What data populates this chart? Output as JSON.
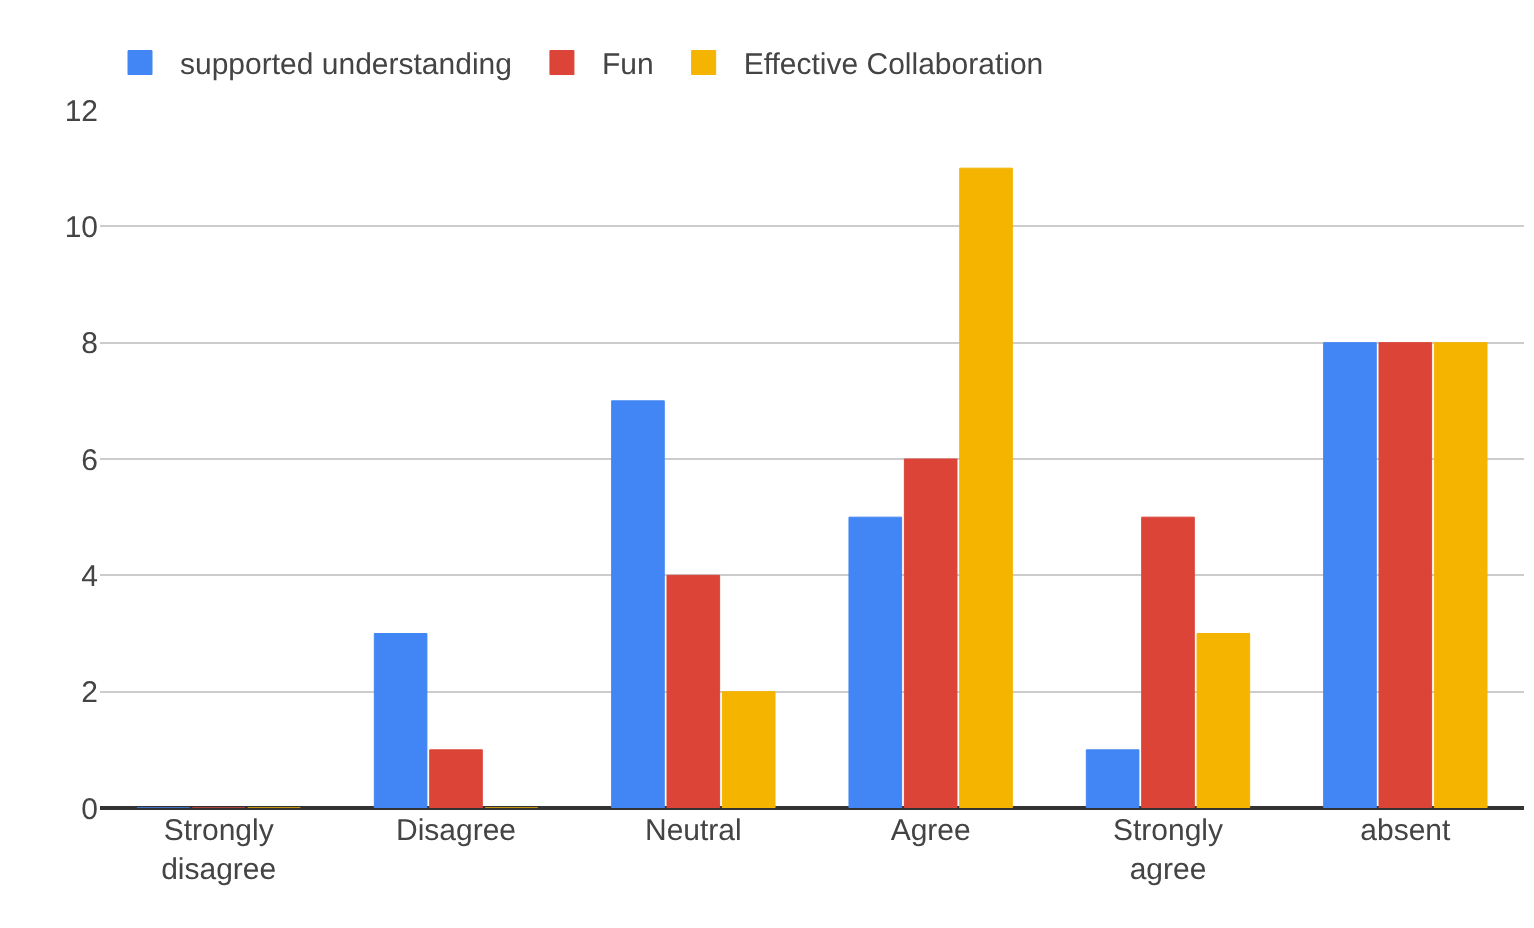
{
  "chart_data": {
    "type": "bar",
    "categories": [
      "Strongly disagree",
      "Disagree",
      "Neutral",
      "Agree",
      "Strongly agree",
      "absent"
    ],
    "series": [
      {
        "name": "supported understanding",
        "color": "#4285f4",
        "values": [
          0,
          3,
          7,
          5,
          1,
          8
        ]
      },
      {
        "name": "Fun",
        "color": "#db4437",
        "values": [
          0,
          1,
          4,
          6,
          5,
          8
        ]
      },
      {
        "name": "Effective Collaboration",
        "color": "#f4b400",
        "values": [
          0,
          0,
          2,
          11,
          3,
          8
        ]
      }
    ],
    "ylim": [
      0,
      12
    ],
    "yticks": [
      0,
      2,
      4,
      6,
      8,
      10,
      12
    ],
    "grid": "y",
    "legend": "top left"
  }
}
